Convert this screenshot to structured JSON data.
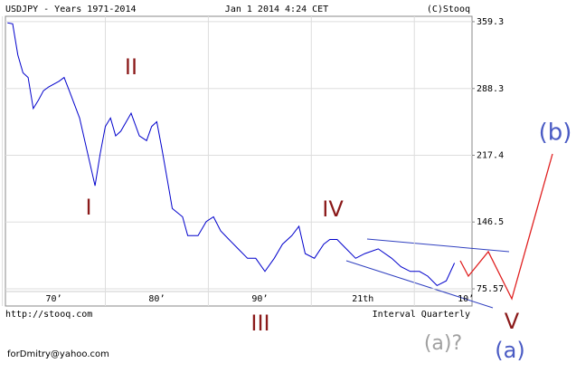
{
  "chart_data": {
    "type": "line",
    "title": "USDJPY - Years 1971-2014",
    "date": "Jan 1 2014 4:24 CET",
    "copyright": "(C)Stooq",
    "source": "http://stooq.com",
    "interval": "Interval Quarterly",
    "author": "forDmitry@yahoo.com",
    "color": "#0000cc",
    "grid": true,
    "xlim": [
      1970.3,
      2015.6
    ],
    "ylim": [
      57.3,
      365
    ],
    "xticks": [
      {
        "value": 1970,
        "label": "70’"
      },
      {
        "value": 1980,
        "label": "80’"
      },
      {
        "value": 1990,
        "label": "90’"
      },
      {
        "value": 2000,
        "label": "21th"
      },
      {
        "value": 2010,
        "label": "10’"
      }
    ],
    "yticks": [
      359.3,
      288.3,
      217.4,
      146.5,
      75.57
    ],
    "x": [
      1970.5,
      1971,
      1971.5,
      1972,
      1972.5,
      1973,
      1973.5,
      1974,
      1974.5,
      1975.5,
      1976,
      1976.5,
      1977.5,
      1978.5,
      1979,
      1979.5,
      1980,
      1980.5,
      1981,
      1981.5,
      1982.5,
      1983.3,
      1984,
      1984.5,
      1985,
      1985.5,
      1986.2,
      1986.5,
      1987.5,
      1988,
      1989,
      1989.8,
      1990.5,
      1991.2,
      1992,
      1992.9,
      1993.8,
      1994.6,
      1995.5,
      1996.4,
      1997.2,
      1998.1,
      1998.8,
      1999.4,
      2000.3,
      2001.2,
      2001.8,
      2002.5,
      2003.4,
      2004.3,
      2005.2,
      2006.5,
      2007.8,
      2008.7,
      2009.6,
      2010.5,
      2011.3,
      2012.2,
      2013.1,
      2013.9
    ],
    "values": [
      358,
      357,
      324,
      305,
      300,
      267,
      276,
      286,
      290,
      296,
      300,
      286,
      257,
      209,
      185,
      219,
      248,
      257,
      238,
      243,
      262,
      238,
      233,
      248,
      253,
      224,
      180,
      161,
      152,
      132,
      132,
      147,
      152,
      137,
      128,
      118,
      108,
      108,
      94,
      108,
      123,
      132,
      142,
      113,
      108,
      123,
      128,
      128,
      118,
      108,
      113,
      118,
      108,
      99,
      94,
      94,
      89,
      79,
      84,
      103
    ],
    "annotations": {
      "i": "I",
      "ii": "II",
      "iii": "III",
      "iv": "IV",
      "v": "V",
      "a": "(a)",
      "b": "(b)",
      "a_q": "(a)?"
    }
  }
}
